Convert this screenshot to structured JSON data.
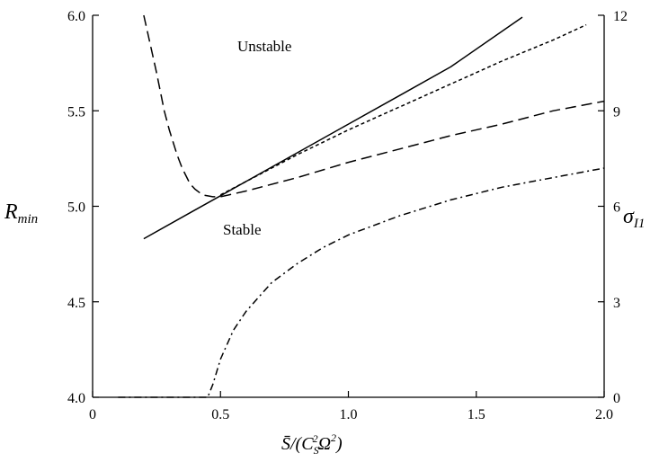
{
  "chart_data": {
    "type": "line",
    "xlabel": {
      "base": "S̄/(C",
      "sub1": "S",
      "sup1": "2",
      "mid": "Ω",
      "sup2": "2",
      "tail": ")"
    },
    "ylabel_left": {
      "base": "R",
      "sub": "min"
    },
    "ylabel_right": {
      "base": "σ",
      "sub": "I1"
    },
    "xlim": [
      0,
      2.0
    ],
    "ylim_left": [
      4.0,
      6.0
    ],
    "ylim_right": [
      0,
      12
    ],
    "x_ticks": [
      0,
      0.5,
      1.0,
      1.5,
      2.0
    ],
    "x_tick_labels": [
      "0",
      "0.5",
      "1.0",
      "1.5",
      "2.0"
    ],
    "y_left_ticks": [
      4.0,
      4.5,
      5.0,
      5.5,
      6.0
    ],
    "y_left_tick_labels": [
      "4.0",
      "4.5",
      "5.0",
      "5.5",
      "6.0"
    ],
    "y_right_ticks": [
      0,
      3,
      6,
      9,
      12
    ],
    "y_right_tick_labels": [
      "0",
      "3",
      "6",
      "9",
      "12"
    ],
    "grid": false,
    "legend": "none",
    "annotations": [
      {
        "text": "Unstable",
        "x": 0.6,
        "y": 5.8
      },
      {
        "text": "Stable",
        "x": 0.55,
        "y": 4.97
      }
    ],
    "series": [
      {
        "style": "solid",
        "axis": "left",
        "x": [
          0.2,
          0.4,
          0.6,
          0.8,
          1.0,
          1.2,
          1.4,
          1.68
        ],
        "y": [
          4.83,
          4.98,
          5.13,
          5.28,
          5.43,
          5.58,
          5.73,
          5.99
        ]
      },
      {
        "style": "short-dash",
        "axis": "left",
        "x": [
          0.5,
          0.6,
          0.7,
          0.8,
          1.0,
          1.2,
          1.4,
          1.6,
          1.8,
          1.93
        ],
        "y": [
          5.06,
          5.13,
          5.2,
          5.27,
          5.4,
          5.52,
          5.64,
          5.76,
          5.87,
          5.95
        ]
      },
      {
        "style": "long-dash",
        "axis": "left",
        "x": [
          0.2,
          0.22,
          0.25,
          0.28,
          0.3,
          0.33,
          0.35,
          0.38,
          0.4,
          0.43,
          0.47,
          0.5,
          0.6,
          0.8,
          1.0,
          1.2,
          1.4,
          1.6,
          1.8,
          2.0
        ],
        "y": [
          6.0,
          5.88,
          5.7,
          5.5,
          5.4,
          5.27,
          5.2,
          5.12,
          5.09,
          5.06,
          5.05,
          5.05,
          5.08,
          5.15,
          5.23,
          5.3,
          5.37,
          5.43,
          5.5,
          5.55
        ]
      },
      {
        "style": "dash-dot",
        "axis": "right",
        "x": [
          0.1,
          0.3,
          0.45,
          0.47,
          0.5,
          0.55,
          0.6,
          0.7,
          0.8,
          0.9,
          1.0,
          1.2,
          1.4,
          1.6,
          1.8,
          2.0
        ],
        "y": [
          0,
          0,
          0,
          0.4,
          1.2,
          2.1,
          2.7,
          3.6,
          4.2,
          4.7,
          5.1,
          5.7,
          6.2,
          6.6,
          6.9,
          7.2
        ]
      }
    ]
  }
}
